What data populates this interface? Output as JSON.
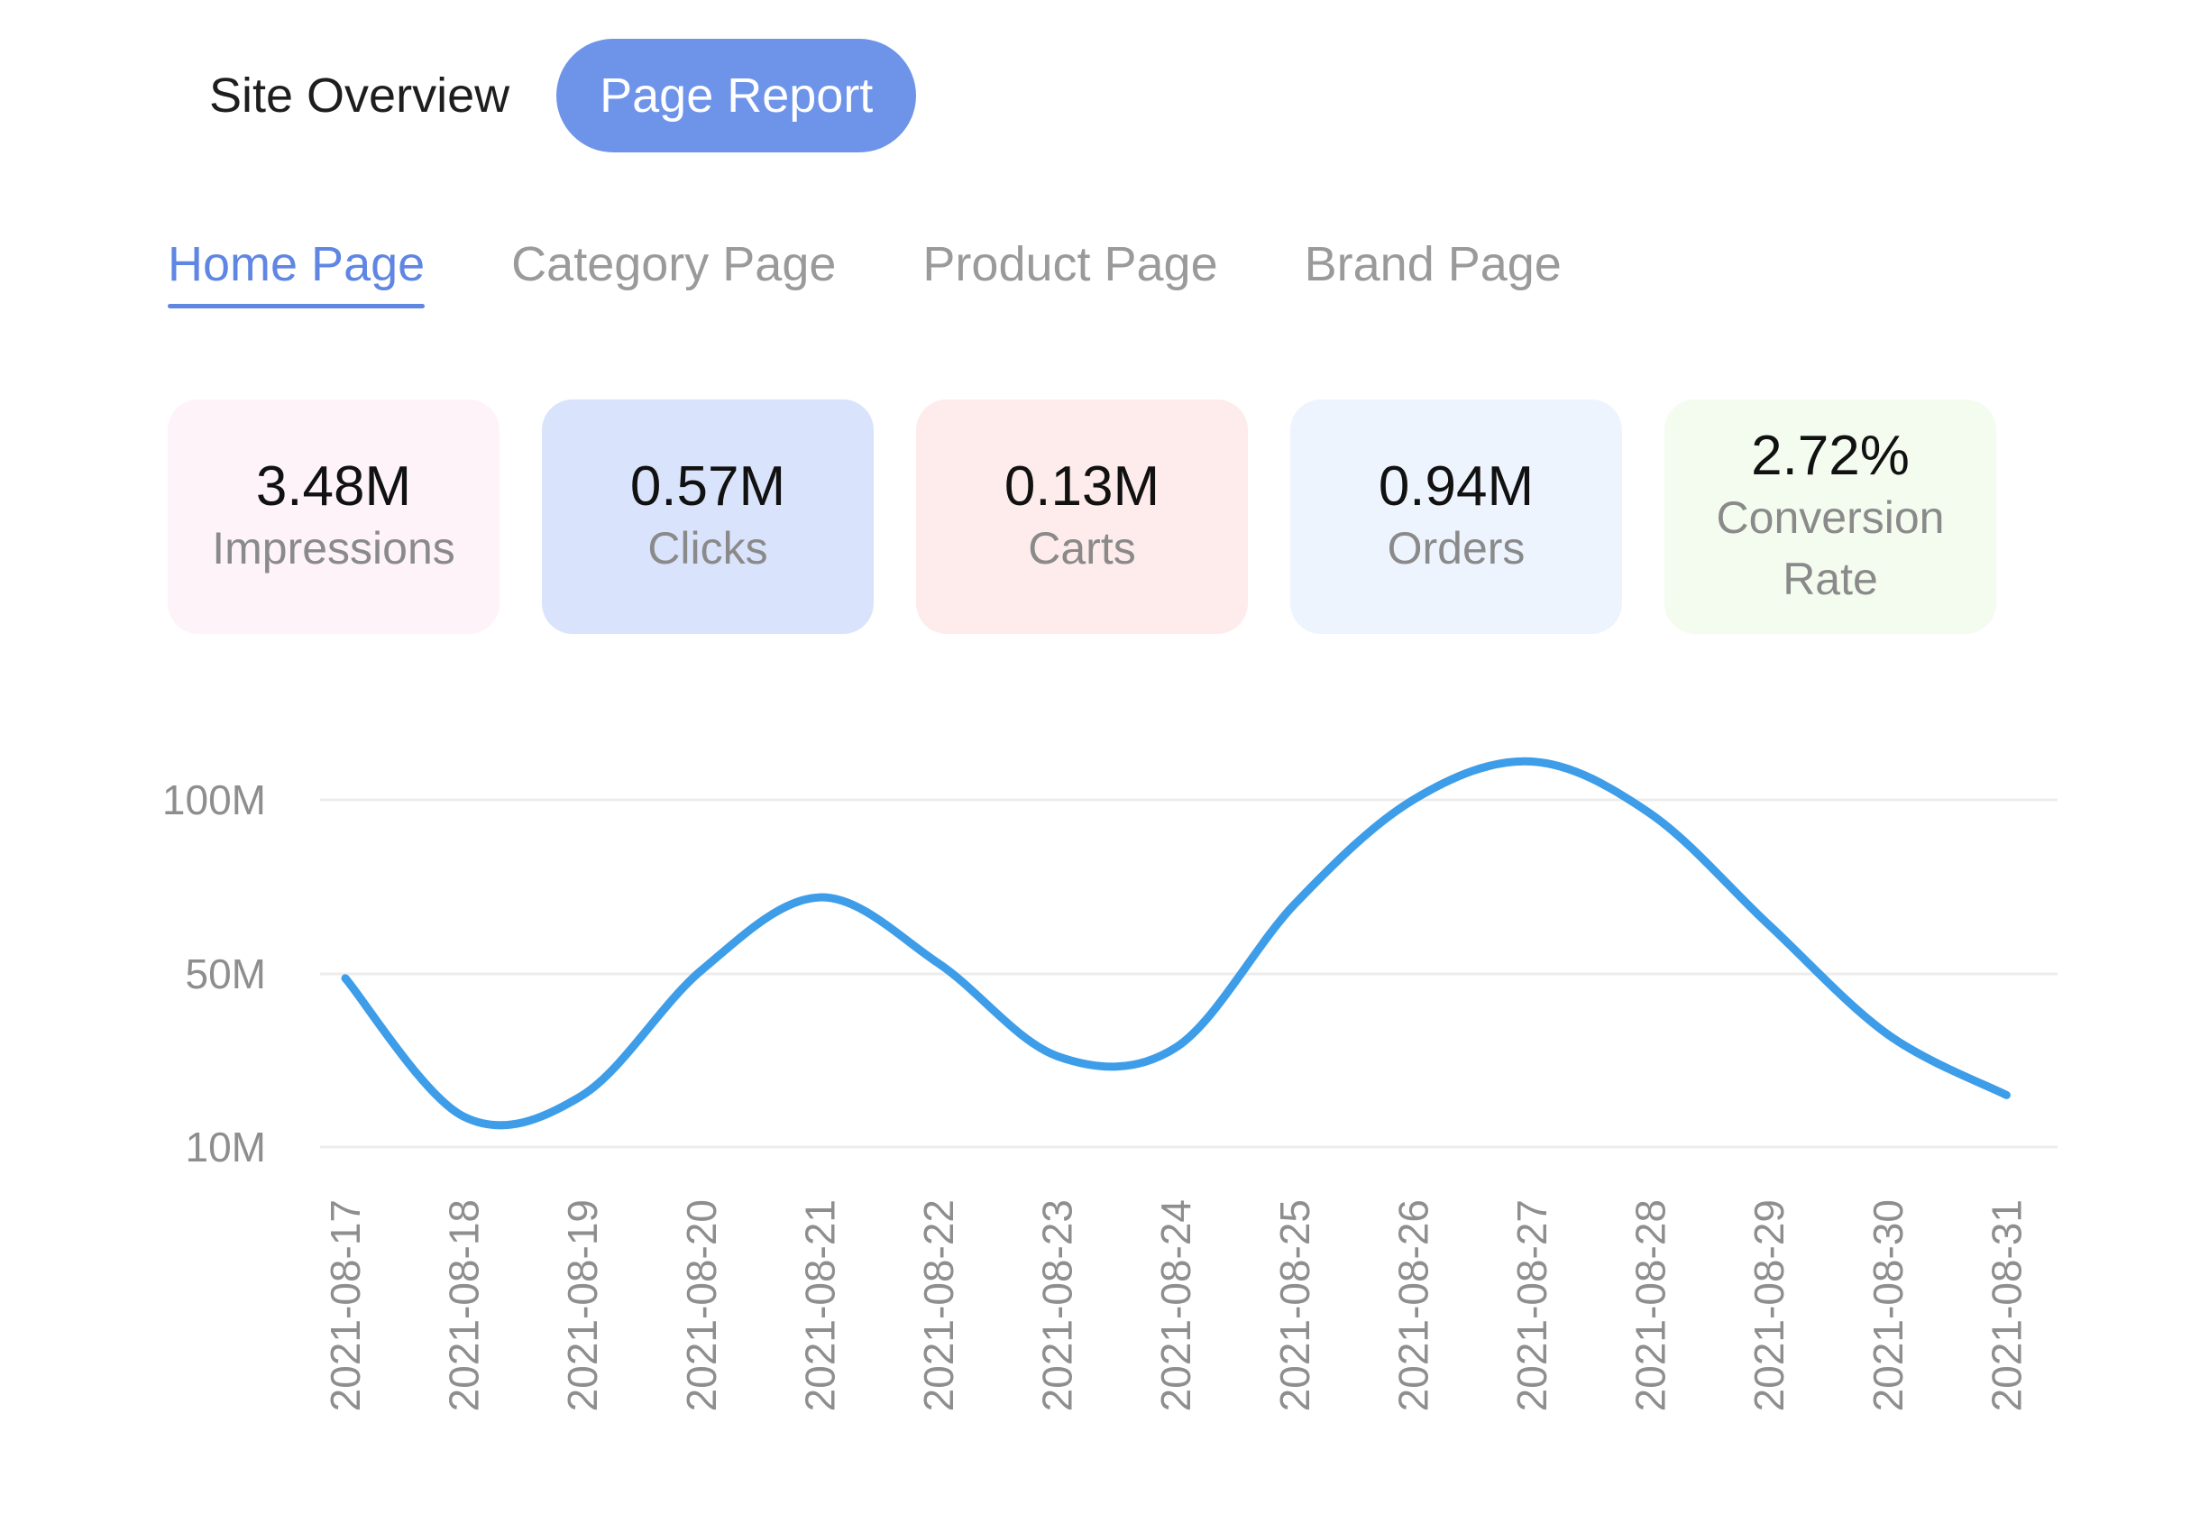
{
  "top_tabs": [
    {
      "label": "Site Overview",
      "active": false
    },
    {
      "label": "Page Report",
      "active": true
    }
  ],
  "page_tabs": [
    {
      "label": "Home Page",
      "active": true
    },
    {
      "label": "Category Page",
      "active": false
    },
    {
      "label": "Product Page",
      "active": false
    },
    {
      "label": "Brand Page",
      "active": false
    }
  ],
  "kpis": [
    {
      "value": "3.48M",
      "label": "Impressions",
      "color": "#fdf3f8"
    },
    {
      "value": "0.57M",
      "label": "Clicks",
      "color": "#d9e3fb"
    },
    {
      "value": "0.13M",
      "label": "Carts",
      "color": "#fdeceb"
    },
    {
      "value": "0.94M",
      "label": "Orders",
      "color": "#eef4fe"
    },
    {
      "value": "2.72%",
      "label": "Conversion Rate",
      "color": "#f3fcef"
    }
  ],
  "chart_data": {
    "type": "line",
    "x": [
      "2021-08-17",
      "2021-08-18",
      "2021-08-19",
      "2021-08-20",
      "2021-08-21",
      "2021-08-22",
      "2021-08-23",
      "2021-08-24",
      "2021-08-25",
      "2021-08-26",
      "2021-08-27",
      "2021-08-28",
      "2021-08-29",
      "2021-08-30",
      "2021-08-31"
    ],
    "series": [
      {
        "values": [
          49,
          17,
          22,
          51,
          72,
          53,
          31,
          33,
          70,
          100,
          111,
          96,
          64,
          36,
          22
        ],
        "color": "#3d9de8"
      }
    ],
    "y_ticks": [
      "10M",
      "50M",
      "100M"
    ],
    "title": "",
    "xlabel": "",
    "ylabel": "",
    "grid": true,
    "x_tick_rotation": -90
  }
}
